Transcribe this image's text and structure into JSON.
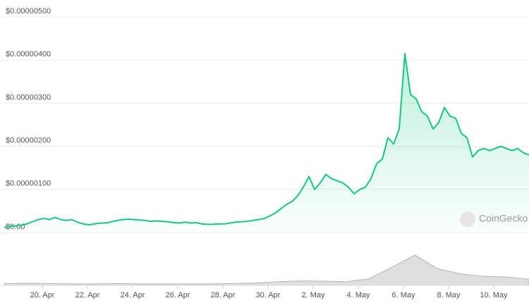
{
  "chart_data": [
    {
      "type": "line",
      "color": "#16c784",
      "watermark": "CoinGecko",
      "grid": true,
      "ylim": [
        0,
        5e-06
      ],
      "yticks": [
        {
          "value": 0,
          "label": "$0.00"
        },
        {
          "value": 1e-06,
          "label": "$0.00000100"
        },
        {
          "value": 2e-06,
          "label": "$0.00000200"
        },
        {
          "value": 3e-06,
          "label": "$0.00000300"
        },
        {
          "value": 4e-06,
          "label": "$0.00000400"
        },
        {
          "value": 5e-06,
          "label": "$0.00000500"
        }
      ],
      "xlim": [
        0,
        93
      ],
      "xticks": [
        {
          "value": 6.75,
          "label": "20. Apr"
        },
        {
          "value": 14.75,
          "label": "22. Apr"
        },
        {
          "value": 22.75,
          "label": "24. Apr"
        },
        {
          "value": 30.75,
          "label": "26. Apr"
        },
        {
          "value": 38.75,
          "label": "28. Apr"
        },
        {
          "value": 46.75,
          "label": "30. Apr"
        },
        {
          "value": 54.75,
          "label": "2. May"
        },
        {
          "value": 62.75,
          "label": "4. May"
        },
        {
          "value": 70.75,
          "label": "6. May"
        },
        {
          "value": 78.75,
          "label": "8. May"
        },
        {
          "value": 86.75,
          "label": "10. May"
        }
      ],
      "values": [
        1.2e-07,
        1.5e-07,
        1.5e-07,
        1.7e-07,
        2e-07,
        2.5e-07,
        3e-07,
        3.3e-07,
        3e-07,
        3.5e-07,
        3e-07,
        2.8e-07,
        3e-07,
        2.4e-07,
        2e-07,
        1.8e-07,
        2e-07,
        2.2e-07,
        2.2e-07,
        2.5e-07,
        2.8e-07,
        3e-07,
        3.1e-07,
        3e-07,
        2.9e-07,
        2.8e-07,
        2.6e-07,
        2.7e-07,
        2.6e-07,
        2.5e-07,
        2.3e-07,
        2.2e-07,
        2.4e-07,
        2.2e-07,
        2.3e-07,
        2e-07,
        1.9e-07,
        1.9e-07,
        2e-07,
        2e-07,
        2.2e-07,
        2.4e-07,
        2.5e-07,
        2.6e-07,
        2.8e-07,
        3e-07,
        3.2e-07,
        3.8e-07,
        4.5e-07,
        5.5e-07,
        6.5e-07,
        7.2e-07,
        8.5e-07,
        1.05e-06,
        1.3e-06,
        1e-06,
        1.15e-06,
        1.35e-06,
        1.25e-06,
        1.2e-06,
        1.15e-06,
        1.05e-06,
        9e-07,
        1e-06,
        1.05e-06,
        1.25e-06,
        1.6e-06,
        1.7e-06,
        2.2e-06,
        2.05e-06,
        2.4e-06,
        4.15e-06,
        3.2e-06,
        3.1e-06,
        2.8e-06,
        2.7e-06,
        2.4e-06,
        2.55e-06,
        2.9e-06,
        2.7e-06,
        2.65e-06,
        2.3e-06,
        2.2e-06,
        1.75e-06,
        1.9e-06,
        1.95e-06,
        1.9e-06,
        1.95e-06,
        2e-06,
        1.95e-06,
        1.9e-06,
        1.95e-06,
        1.85e-06,
        1.8e-06
      ]
    },
    {
      "type": "area",
      "color": "#c8c8c8",
      "ylim": [
        0,
        100
      ],
      "xlim": [
        0,
        23
      ],
      "values": [
        6,
        7,
        6,
        5,
        5,
        6,
        5,
        5,
        5,
        5,
        6,
        8,
        12,
        15,
        14,
        12,
        22,
        60,
        100,
        55,
        38,
        30,
        28,
        20
      ]
    }
  ]
}
